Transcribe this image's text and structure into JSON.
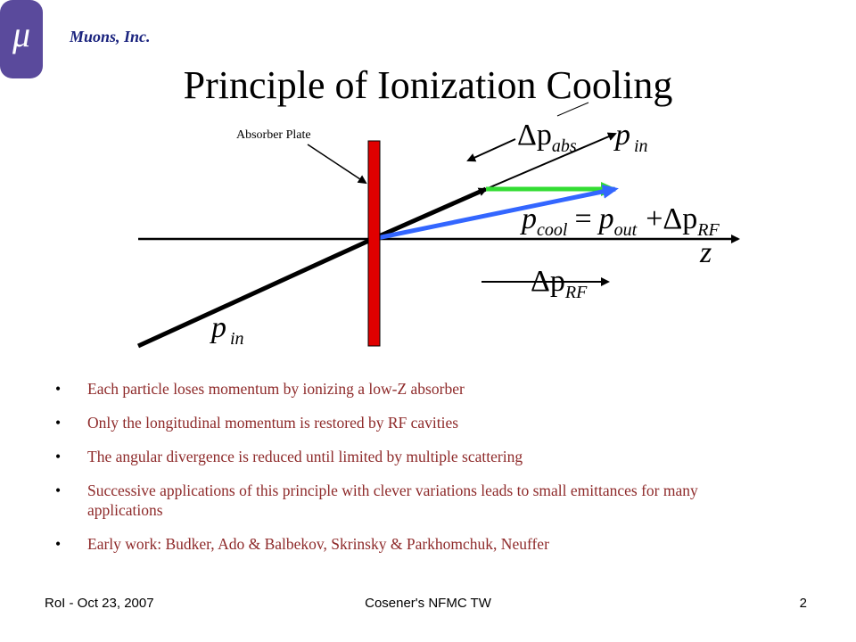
{
  "header": {
    "logo": "μ",
    "company": "Muons, Inc.",
    "title": "Principle of Ionization Cooling"
  },
  "diagram": {
    "absorber_label": "Absorber Plate",
    "dp_abs": {
      "symbol": "Δp",
      "sub": "abs"
    },
    "p_in_top": {
      "symbol": "p",
      "sub": "in"
    },
    "p_cool": {
      "symbol": "p",
      "sub": "cool"
    },
    "equals": "=",
    "p_out": {
      "symbol": "p",
      "sub": "out"
    },
    "plus": "+",
    "dp_rf_eq": {
      "symbol": "Δp",
      "sub": "RF"
    },
    "z": "z",
    "dp_rf": {
      "symbol": "Δp",
      "sub": "RF"
    },
    "p_in_bottom": {
      "symbol": "p",
      "sub": "in"
    }
  },
  "bullets": [
    "Each particle loses momentum by ionizing a low-Z absorber",
    "Only the longitudinal momentum is restored by RF cavities",
    "The angular divergence is reduced until limited by multiple scattering",
    "Successive applications of this principle with clever variations leads to small emittances for many applications",
    "Early work: Budker, Ado & Balbekov, Skrinsky & Parkhomchuk, Neuffer"
  ],
  "footer": {
    "left": "RoI - Oct 23, 2007",
    "center": "Cosener's NFMC TW",
    "page": "2"
  }
}
